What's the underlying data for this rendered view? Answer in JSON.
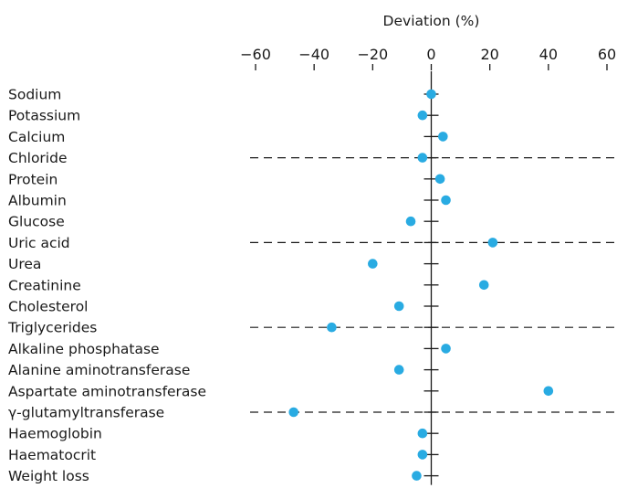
{
  "chart_data": {
    "type": "scatter",
    "title": "",
    "xlabel": "Deviation (%)",
    "ylabel": "",
    "xlim": [
      -60,
      60
    ],
    "xticks": [
      -60,
      -40,
      -20,
      0,
      20,
      40,
      60
    ],
    "xtick_labels": [
      "−60",
      "−40",
      "−20",
      "0",
      "20",
      "40",
      "60"
    ],
    "axis_position": "top",
    "grid": false,
    "categories": [
      "Sodium",
      "Potassium",
      "Calcium",
      "Chloride",
      "Protein",
      "Albumin",
      "Glucose",
      "Uric acid",
      "Urea",
      "Creatinine",
      "Cholesterol",
      "Triglycerides",
      "Alkaline phosphatase",
      "Alanine aminotransferase",
      "Aspartate aminotransferase",
      "γ-glutamyltransferase",
      "Haemoglobin",
      "Haematocrit",
      "Weight loss"
    ],
    "values": [
      0,
      -3,
      4,
      -3,
      3,
      5,
      -7,
      21,
      -20,
      18,
      -11,
      -34,
      5,
      -11,
      40,
      -47,
      -3,
      -3,
      -5
    ],
    "group_separators_after": [
      "Calcium",
      "Glucose",
      "Cholesterol",
      "Aspartate aminotransferase"
    ],
    "marker_color": "#29abe2",
    "axis_color": "#1a1a1a"
  }
}
